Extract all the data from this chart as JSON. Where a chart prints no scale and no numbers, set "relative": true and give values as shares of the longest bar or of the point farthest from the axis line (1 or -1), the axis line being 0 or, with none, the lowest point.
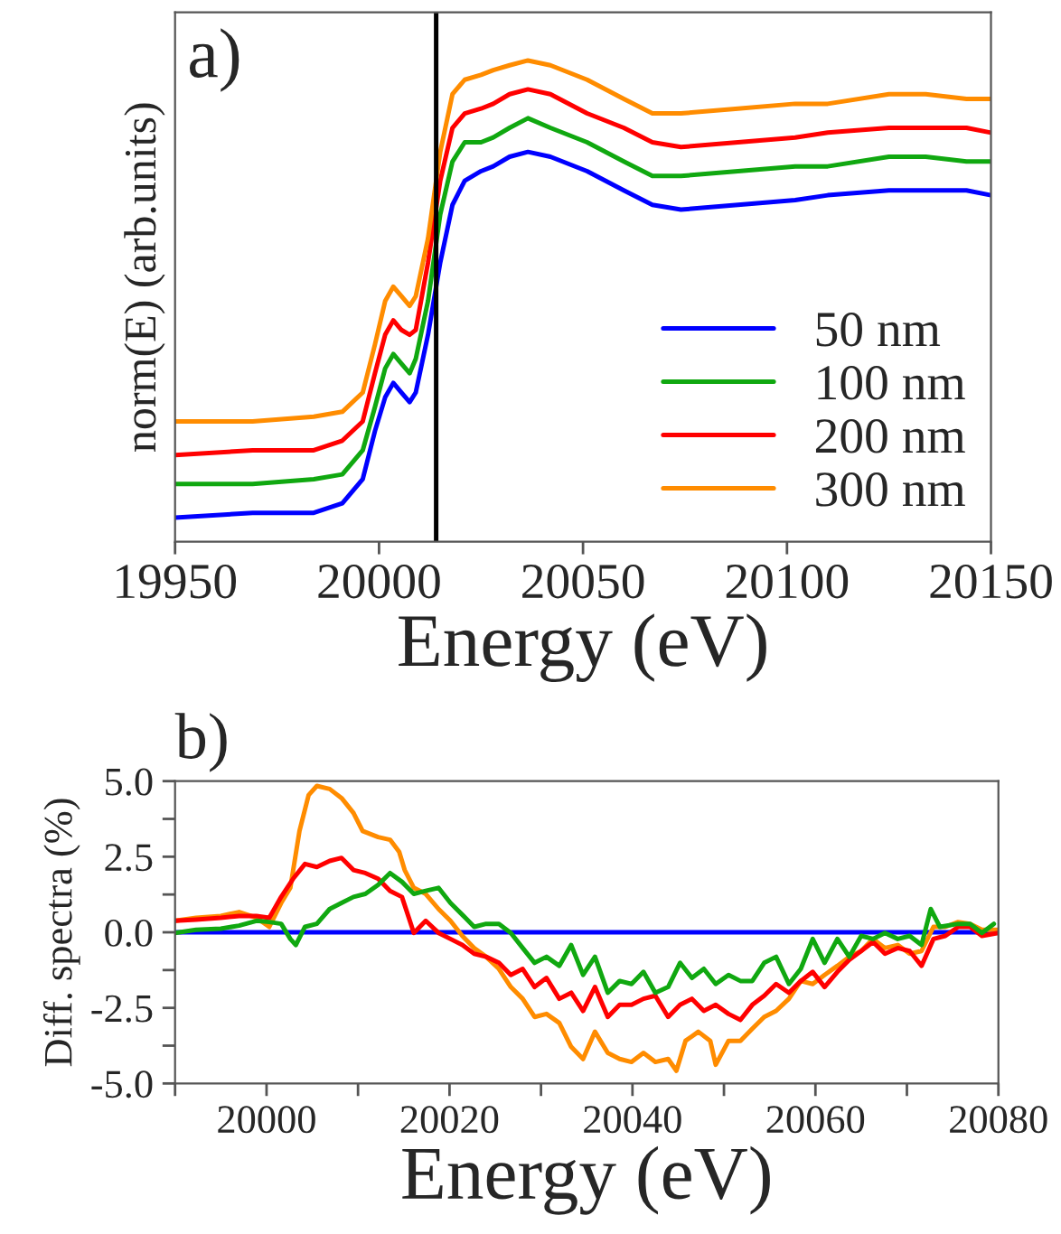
{
  "chart_data": [
    {
      "type": "line",
      "relative": true,
      "xlabel": "Energy (eV)",
      "ylabel": "norm(E) (arb.units)",
      "annotations": [
        "a)"
      ],
      "xlim": [
        19950,
        20150
      ],
      "xticks": [
        19950,
        20000,
        20050,
        20100,
        20150
      ],
      "legend": "lower right",
      "tick_labels": "x",
      "x": [
        19950,
        19969,
        19984,
        19991,
        19996,
        19999,
        20001.5,
        20003.5,
        20005.5,
        20007.5,
        20009,
        20012,
        20015,
        20018,
        20021,
        20025,
        20028,
        20032,
        20036.5,
        20042,
        20051,
        20060,
        20067,
        20074,
        20088,
        20102,
        20110,
        20125,
        20134,
        20144,
        20150
      ],
      "ref_lines": [
        {
          "axis": "x",
          "value": 20014,
          "color": "#000000"
        }
      ],
      "series": [
        {
          "name": "50 nm",
          "color": "#0000ff",
          "values": [
            0.05,
            0.06,
            0.06,
            0.08,
            0.13,
            0.23,
            0.3,
            0.33,
            0.31,
            0.29,
            0.31,
            0.43,
            0.58,
            0.7,
            0.75,
            0.77,
            0.78,
            0.8,
            0.81,
            0.8,
            0.77,
            0.73,
            0.7,
            0.69,
            0.7,
            0.71,
            0.72,
            0.73,
            0.73,
            0.73,
            0.72
          ]
        },
        {
          "name": "100 nm",
          "color": "#10a810",
          "values": [
            0.12,
            0.12,
            0.13,
            0.14,
            0.19,
            0.28,
            0.36,
            0.39,
            0.37,
            0.35,
            0.38,
            0.5,
            0.68,
            0.79,
            0.83,
            0.83,
            0.84,
            0.86,
            0.88,
            0.86,
            0.83,
            0.79,
            0.76,
            0.76,
            0.77,
            0.78,
            0.78,
            0.8,
            0.8,
            0.79,
            0.79
          ]
        },
        {
          "name": "200 nm",
          "color": "#ff0000",
          "values": [
            0.18,
            0.19,
            0.19,
            0.21,
            0.25,
            0.35,
            0.43,
            0.46,
            0.44,
            0.43,
            0.44,
            0.58,
            0.75,
            0.86,
            0.89,
            0.9,
            0.91,
            0.93,
            0.94,
            0.93,
            0.89,
            0.86,
            0.83,
            0.82,
            0.83,
            0.84,
            0.85,
            0.86,
            0.86,
            0.86,
            0.85
          ]
        },
        {
          "name": "300 nm",
          "color": "#ff8c00",
          "values": [
            0.25,
            0.25,
            0.26,
            0.27,
            0.31,
            0.41,
            0.5,
            0.53,
            0.51,
            0.49,
            0.51,
            0.63,
            0.81,
            0.93,
            0.96,
            0.97,
            0.98,
            0.99,
            1.0,
            0.99,
            0.96,
            0.92,
            0.89,
            0.89,
            0.9,
            0.91,
            0.91,
            0.93,
            0.93,
            0.92,
            0.92
          ]
        }
      ]
    },
    {
      "type": "line",
      "xlabel": "Energy (eV)",
      "ylabel": "Diff. spectra (%)",
      "annotations": [
        "b)"
      ],
      "xlim": [
        19990,
        20080
      ],
      "xticks": [
        {
          "value": 19990,
          "label": null
        },
        20000,
        {
          "value": 20010,
          "label": null
        },
        20020,
        {
          "value": 20030,
          "label": null
        },
        20040,
        {
          "value": 20050,
          "label": null
        },
        20060,
        {
          "value": 20070,
          "label": null
        },
        20080
      ],
      "ylim": [
        -5,
        5
      ],
      "yticks": [
        {
          "value": -5,
          "label": "-5.0"
        },
        {
          "value": -3.75,
          "label": null
        },
        {
          "value": -2.5,
          "label": "-2.5"
        },
        {
          "value": -1.25,
          "label": null
        },
        {
          "value": 0,
          "label": "0.0"
        },
        {
          "value": 1.25,
          "label": null
        },
        {
          "value": 2.5,
          "label": "2.5"
        },
        {
          "value": 3.75,
          "label": null
        },
        {
          "value": 5,
          "label": "5.0"
        }
      ],
      "series": [
        {
          "color": "#0000ff",
          "x": [
            19990,
            20080
          ],
          "values": [
            0,
            0
          ]
        },
        {
          "color": "#ff8c00",
          "x": [
            19990,
            19992.3,
            19995,
            19997,
            19998.9,
            20000.3,
            20001.6,
            20002.6,
            20003.6,
            20004.6,
            20005.5,
            20006.9,
            20008.2,
            20009.5,
            20010.5,
            20012.2,
            20013.5,
            20014.5,
            20015.1,
            20016.1,
            20017.4,
            20018.8,
            20020.1,
            20021.4,
            20022.7,
            20024.0,
            20025.4,
            20026.7,
            20028.0,
            20029.3,
            20030.6,
            20032.0,
            20033.3,
            20034.6,
            20035.9,
            20037.3,
            20038.6,
            20039.9,
            20041.2,
            20042.5,
            20043.9,
            20044.8,
            20045.8,
            20047.2,
            20048.5,
            20049.1,
            20050.5,
            20051.8,
            20053.1,
            20054.4,
            20055.7,
            20057.1,
            20058.4,
            20059.7,
            20061.0,
            20062.4,
            20063.7,
            20065.0,
            20066.3,
            20067.6,
            20069.0,
            20070.3,
            20071.6,
            20072.9,
            20074.2,
            20075.6,
            20076.9,
            20078.2,
            20080
          ],
          "values": [
            0.38,
            0.48,
            0.54,
            0.67,
            0.48,
            0.18,
            0.97,
            1.47,
            3.35,
            4.54,
            4.84,
            4.74,
            4.44,
            3.95,
            3.35,
            3.15,
            3.06,
            2.66,
            2.06,
            1.47,
            1.27,
            0.77,
            0.38,
            -0.12,
            -0.52,
            -0.81,
            -1.21,
            -1.81,
            -2.2,
            -2.8,
            -2.7,
            -3.0,
            -3.79,
            -4.19,
            -3.29,
            -3.99,
            -4.19,
            -4.29,
            -3.99,
            -4.29,
            -4.19,
            -4.58,
            -3.59,
            -3.29,
            -3.59,
            -4.38,
            -3.59,
            -3.59,
            -3.19,
            -2.8,
            -2.6,
            -2.2,
            -1.61,
            -1.71,
            -1.41,
            -1.11,
            -0.81,
            -0.62,
            -0.22,
            -0.52,
            -0.42,
            -0.71,
            -0.62,
            0.18,
            0.18,
            0.34,
            0.28,
            0.08,
            0.08
          ]
        },
        {
          "color": "#ff0000",
          "x": [
            19990,
            19992.3,
            19995,
            19997,
            19998.9,
            20000.3,
            20001.6,
            20002.9,
            20004.2,
            20005.5,
            20006.9,
            20008.2,
            20009.5,
            20010.8,
            20012.2,
            20013.5,
            20014.8,
            20016.1,
            20017.4,
            20018.8,
            20020.1,
            20021.4,
            20022.7,
            20024.0,
            20025.4,
            20026.7,
            20028.0,
            20029.3,
            20030.6,
            20032.0,
            20033.3,
            20034.6,
            20035.9,
            20037.3,
            20038.6,
            20039.9,
            20041.2,
            20042.5,
            20043.9,
            20045.2,
            20046.5,
            20047.8,
            20049.1,
            20050.5,
            20051.8,
            20053.1,
            20054.4,
            20055.7,
            20057.1,
            20058.4,
            20059.7,
            20061.0,
            20062.4,
            20063.7,
            20065.0,
            20066.3,
            20067.6,
            20069.0,
            20070.3,
            20071.6,
            20072.9,
            20074.2,
            20075.6,
            20076.9,
            20078.2,
            20080
          ],
          "values": [
            0.38,
            0.42,
            0.48,
            0.54,
            0.54,
            0.48,
            1.17,
            1.77,
            2.26,
            2.16,
            2.36,
            2.46,
            2.06,
            1.96,
            1.77,
            1.37,
            1.17,
            -0.02,
            0.38,
            -0.02,
            -0.22,
            -0.42,
            -0.71,
            -0.81,
            -1.01,
            -1.41,
            -1.21,
            -1.81,
            -1.51,
            -2.2,
            -2.0,
            -2.6,
            -1.81,
            -2.8,
            -2.4,
            -2.4,
            -2.2,
            -2.1,
            -2.8,
            -2.4,
            -2.2,
            -2.6,
            -2.4,
            -2.7,
            -2.9,
            -2.4,
            -2.1,
            -1.71,
            -2.0,
            -1.61,
            -1.31,
            -1.81,
            -1.31,
            -0.91,
            -0.62,
            -0.32,
            -0.71,
            -0.52,
            -0.62,
            -1.11,
            -0.22,
            -0.12,
            0.18,
            0.18,
            -0.12,
            -0.02
          ]
        },
        {
          "color": "#10a810",
          "x": [
            19990,
            19992.3,
            19995,
            19997,
            19998.9,
            20000.3,
            20001.6,
            20002.6,
            20003.2,
            20004.2,
            20005.5,
            20006.9,
            20008.2,
            20009.5,
            20010.8,
            20012.2,
            20013.5,
            20014.8,
            20016.1,
            20017.4,
            20018.8,
            20020.1,
            20021.4,
            20022.7,
            20024.0,
            20025.4,
            20026.7,
            20028.0,
            20029.3,
            20030.6,
            20032.0,
            20033.3,
            20034.6,
            20035.9,
            20037.3,
            20038.6,
            20039.9,
            20041.2,
            20042.5,
            20043.9,
            20045.2,
            20046.5,
            20047.8,
            20049.1,
            20050.5,
            20051.8,
            20053.1,
            20054.4,
            20055.7,
            20057.1,
            20058.4,
            20059.7,
            20061.0,
            20062.4,
            20063.7,
            20065.0,
            20066.3,
            20067.6,
            20069.0,
            20070.3,
            20071.6,
            20072.6,
            20073.6,
            20075.6,
            20076.9,
            20078.2,
            20079.5
          ],
          "values": [
            -0.02,
            0.08,
            0.12,
            0.22,
            0.38,
            0.34,
            0.28,
            -0.22,
            -0.42,
            0.18,
            0.28,
            0.77,
            0.97,
            1.17,
            1.27,
            1.57,
            1.96,
            1.67,
            1.27,
            1.37,
            1.47,
            0.97,
            0.58,
            0.18,
            0.28,
            0.28,
            -0.02,
            -0.52,
            -1.01,
            -0.81,
            -1.11,
            -0.42,
            -1.41,
            -0.81,
            -2.0,
            -1.61,
            -1.71,
            -1.31,
            -2.0,
            -1.81,
            -1.01,
            -1.51,
            -1.21,
            -1.71,
            -1.41,
            -1.61,
            -1.61,
            -1.01,
            -0.81,
            -1.71,
            -1.21,
            -0.22,
            -1.01,
            -0.22,
            -0.81,
            -0.12,
            -0.22,
            -0.02,
            -0.22,
            -0.12,
            -0.42,
            0.77,
            0.18,
            0.28,
            0.28,
            -0.02,
            0.28
          ]
        }
      ]
    }
  ]
}
